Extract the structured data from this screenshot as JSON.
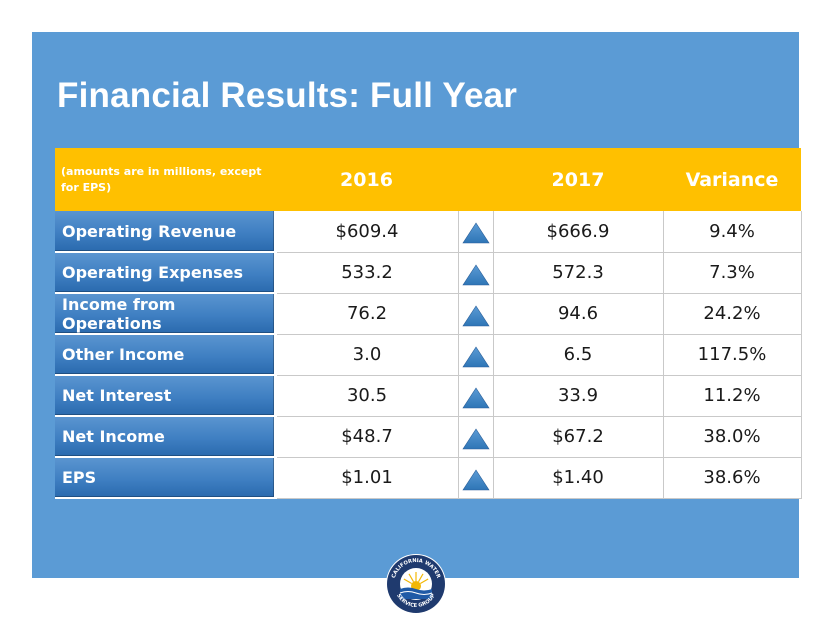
{
  "slide": {
    "title": "Financial Results: Full Year"
  },
  "table": {
    "header": {
      "note": "(amounts are in millions, except for EPS)",
      "col_2016": "2016",
      "col_2017": "2017",
      "col_variance": "Variance"
    },
    "rows": [
      {
        "label": "Operating Revenue",
        "v2016": "$609.4",
        "v2017": "$666.9",
        "variance": "9.4%",
        "trend": "up"
      },
      {
        "label": "Operating Expenses",
        "v2016": "533.2",
        "v2017": "572.3",
        "variance": "7.3%",
        "trend": "up"
      },
      {
        "label": "Income from Operations",
        "v2016": "76.2",
        "v2017": "94.6",
        "variance": "24.2%",
        "trend": "up"
      },
      {
        "label": "Other Income",
        "v2016": "3.0",
        "v2017": "6.5",
        "variance": "117.5%",
        "trend": "up"
      },
      {
        "label": "Net Interest",
        "v2016": "30.5",
        "v2017": "33.9",
        "variance": "11.2%",
        "trend": "up"
      },
      {
        "label": "Net Income",
        "v2016": "$48.7",
        "v2017": "$67.2",
        "variance": "38.0%",
        "trend": "up"
      },
      {
        "label": "EPS",
        "v2016": "$1.01",
        "v2017": "$1.40",
        "variance": "38.6%",
        "trend": "up"
      }
    ]
  },
  "logo": {
    "text_top": "CALIFORNIA WATER",
    "text_bottom": "SERVICE GROUP"
  },
  "colors": {
    "slide_bg": "#5b9bd5",
    "header_bg": "#ffc000",
    "label_bg": "#3f7fc2",
    "arrow": "#2e75b6",
    "logo_navy": "#1f3a6e",
    "logo_gold": "#f2b705"
  }
}
